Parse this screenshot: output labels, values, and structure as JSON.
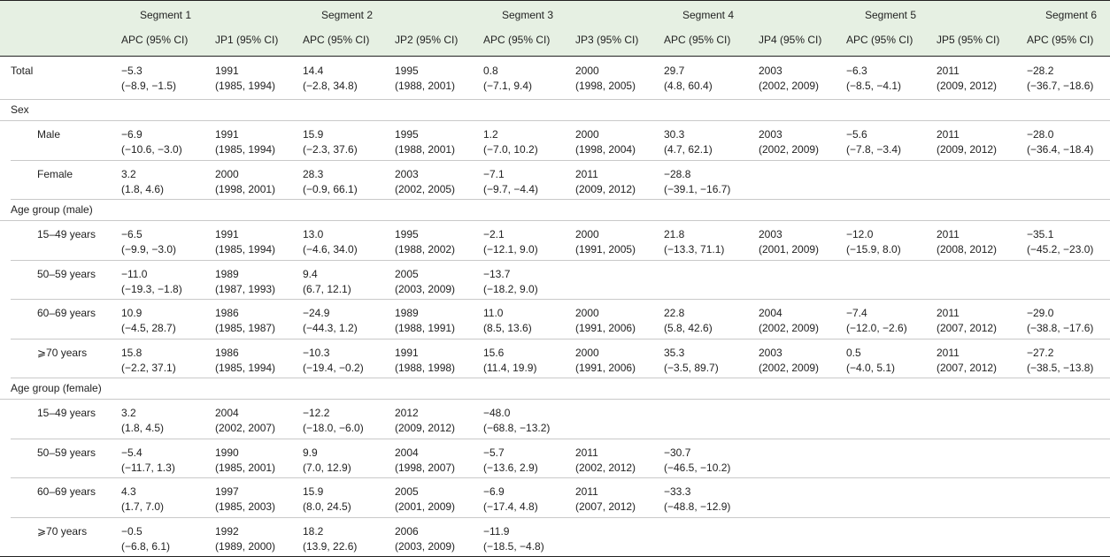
{
  "header": {
    "segments": [
      "Segment 1",
      "Segment 2",
      "Segment 3",
      "Segment 4",
      "Segment 5",
      "Segment 6"
    ],
    "columns": [
      "APC (95% CI)",
      "JP1 (95% CI)",
      "APC (95% CI)",
      "JP2 (95% CI)",
      "APC (95% CI)",
      "JP3 (95% CI)",
      "APC (95% CI)",
      "JP4 (95% CI)",
      "APC (95% CI)",
      "JP5 (95% CI)",
      "APC (95% CI)"
    ]
  },
  "body": [
    {
      "rows": [
        {
          "label": "Total",
          "cells": [
            [
              "−5.3",
              "(−8.9, −1.5)"
            ],
            [
              "1991",
              "(1985, 1994)"
            ],
            [
              "14.4",
              "(−2.8, 34.8)"
            ],
            [
              "1995",
              "(1988, 2001)"
            ],
            [
              "0.8",
              "(−7.1, 9.4)"
            ],
            [
              "2000",
              "(1998, 2005)"
            ],
            [
              "29.7",
              "(4.8, 60.4)"
            ],
            [
              "2003",
              "(2002, 2009)"
            ],
            [
              "−6.3",
              "(−8.5, −4.1)"
            ],
            [
              "2011",
              "(2009, 2012)"
            ],
            [
              "−28.2",
              "(−36.7, −18.6)"
            ]
          ]
        }
      ]
    },
    {
      "title": "Sex",
      "rows": [
        {
          "label": "Male",
          "cells": [
            [
              "−6.9",
              "(−10.6, −3.0)"
            ],
            [
              "1991",
              "(1985, 1994)"
            ],
            [
              "15.9",
              "(−2.3, 37.6)"
            ],
            [
              "1995",
              "(1988, 2001)"
            ],
            [
              "1.2",
              "(−7.0, 10.2)"
            ],
            [
              "2000",
              "(1998, 2004)"
            ],
            [
              "30.3",
              "(4.7, 62.1)"
            ],
            [
              "2003",
              "(2002, 2009)"
            ],
            [
              "−5.6",
              "(−7.8, −3.4)"
            ],
            [
              "2011",
              "(2009, 2012)"
            ],
            [
              "−28.0",
              "(−36.4, −18.4)"
            ]
          ]
        },
        {
          "label": "Female",
          "cells": [
            [
              "3.2",
              "(1.8, 4.6)"
            ],
            [
              "2000",
              "(1998, 2001)"
            ],
            [
              "28.3",
              "(−0.9, 66.1)"
            ],
            [
              "2003",
              "(2002, 2005)"
            ],
            [
              "−7.1",
              "(−9.7, −4.4)"
            ],
            [
              "2011",
              "(2009, 2012)"
            ],
            [
              "−28.8",
              "(−39.1, −16.7)"
            ]
          ]
        }
      ]
    },
    {
      "title": "Age group (male)",
      "rows": [
        {
          "label": "15–49 years",
          "cells": [
            [
              "−6.5",
              "(−9.9, −3.0)"
            ],
            [
              "1991",
              "(1985, 1994)"
            ],
            [
              "13.0",
              "(−4.6, 34.0)"
            ],
            [
              "1995",
              "(1988, 2002)"
            ],
            [
              "−2.1",
              "(−12.1, 9.0)"
            ],
            [
              "2000",
              "(1991, 2005)"
            ],
            [
              "21.8",
              "(−13.3, 71.1)"
            ],
            [
              "2003",
              "(2001, 2009)"
            ],
            [
              "−12.0",
              "(−15.9, 8.0)"
            ],
            [
              "2011",
              "(2008, 2012)"
            ],
            [
              "−35.1",
              "(−45.2, −23.0)"
            ]
          ]
        },
        {
          "label": "50–59 years",
          "cells": [
            [
              "−11.0",
              "(−19.3, −1.8)"
            ],
            [
              "1989",
              "(1987, 1993)"
            ],
            [
              "9.4",
              "(6.7, 12.1)"
            ],
            [
              "2005",
              "(2003, 2009)"
            ],
            [
              "−13.7",
              "(−18.2, 9.0)"
            ]
          ]
        },
        {
          "label": "60–69 years",
          "cells": [
            [
              "10.9",
              "(−4.5, 28.7)"
            ],
            [
              "1986",
              "(1985, 1987)"
            ],
            [
              "−24.9",
              "(−44.3, 1.2)"
            ],
            [
              "1989",
              "(1988, 1991)"
            ],
            [
              "11.0",
              "(8.5, 13.6)"
            ],
            [
              "2000",
              "(1991, 2006)"
            ],
            [
              "22.8",
              "(5.8, 42.6)"
            ],
            [
              "2004",
              "(2002, 2009)"
            ],
            [
              "−7.4",
              "(−12.0, −2.6)"
            ],
            [
              "2011",
              "(2007, 2012)"
            ],
            [
              "−29.0",
              "(−38.8, −17.6)"
            ]
          ]
        },
        {
          "label": "⩾70 years",
          "cells": [
            [
              "15.8",
              "(−2.2, 37.1)"
            ],
            [
              "1986",
              "(1985, 1994)"
            ],
            [
              "−10.3",
              "(−19.4, −0.2)"
            ],
            [
              "1991",
              "(1988, 1998)"
            ],
            [
              "15.6",
              "(11.4, 19.9)"
            ],
            [
              "2000",
              "(1991, 2006)"
            ],
            [
              "35.3",
              "(−3.5, 89.7)"
            ],
            [
              "2003",
              "(2002, 2009)"
            ],
            [
              "0.5",
              "(−4.0, 5.1)"
            ],
            [
              "2011",
              "(2007, 2012)"
            ],
            [
              "−27.2",
              "(−38.5, −13.8)"
            ]
          ]
        }
      ]
    },
    {
      "title": "Age group (female)",
      "rows": [
        {
          "label": "15–49 years",
          "cells": [
            [
              "3.2",
              "(1.8, 4.5)"
            ],
            [
              "2004",
              "(2002, 2007)"
            ],
            [
              "−12.2",
              "(−18.0, −6.0)"
            ],
            [
              "2012",
              "(2009, 2012)"
            ],
            [
              "−48.0",
              "(−68.8, −13.2)"
            ]
          ]
        },
        {
          "label": "50–59 years",
          "cells": [
            [
              "−5.4",
              "(−11.7, 1.3)"
            ],
            [
              "1990",
              "(1985, 2001)"
            ],
            [
              "9.9",
              "(7.0, 12.9)"
            ],
            [
              "2004",
              "(1998, 2007)"
            ],
            [
              "−5.7",
              "(−13.6, 2.9)"
            ],
            [
              "2011",
              "(2002, 2012)"
            ],
            [
              "−30.7",
              "(−46.5, −10.2)"
            ]
          ]
        },
        {
          "label": "60–69 years",
          "cells": [
            [
              "4.3",
              "(1.7, 7.0)"
            ],
            [
              "1997",
              "(1985, 2003)"
            ],
            [
              "15.9",
              "(8.0, 24.5)"
            ],
            [
              "2005",
              "(2001, 2009)"
            ],
            [
              "−6.9",
              "(−17.4, 4.8)"
            ],
            [
              "2011",
              "(2007, 2012)"
            ],
            [
              "−33.3",
              "(−48.8, −12.9)"
            ]
          ]
        },
        {
          "label": "⩾70 years",
          "cells": [
            [
              "−0.5",
              "(−6.8, 6.1)"
            ],
            [
              "1992",
              "(1989, 2000)"
            ],
            [
              "18.2",
              "(13.9, 22.6)"
            ],
            [
              "2006",
              "(2003, 2009)"
            ],
            [
              "−11.9",
              "(−18.5, −4.8)"
            ]
          ]
        }
      ]
    }
  ]
}
